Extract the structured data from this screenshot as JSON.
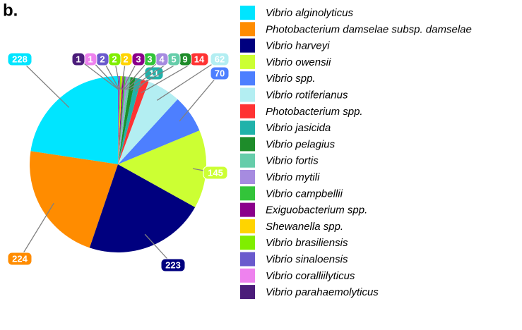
{
  "chart_data": {
    "type": "pie",
    "title": "b.",
    "categories": [
      "Vibrio alginolyticus",
      "Photobacterium damselae subsp. damselae",
      "Vibrio harveyi",
      "Vibrio owensii",
      "Vibrio spp.",
      "Vibrio rotiferianus",
      "Photobacterium spp.",
      "Vibrio jasicida",
      "Vibrio pelagius",
      "Vibrio fortis",
      "Vibrio mytili",
      "Vibrio campbellii",
      "Exiguobacterium spp.",
      "Shewanella spp.",
      "Vibrio brasiliensis",
      "Vibrio sinaloensis",
      "Vibrio coralliilyticus",
      "Vibrio parahaemolyticus"
    ],
    "values": [
      228,
      224,
      223,
      145,
      70,
      62,
      14,
      11,
      9,
      5,
      4,
      3,
      3,
      2,
      2,
      2,
      1,
      1
    ],
    "colors": [
      "#00e5ff",
      "#ff8c00",
      "#00007f",
      "#ccff33",
      "#4d7fff",
      "#b3eef2",
      "#ff3333",
      "#20b2aa",
      "#1e8c2a",
      "#66cdaa",
      "#a68be0",
      "#33c43a",
      "#8b008b",
      "#ffd400",
      "#80ee00",
      "#6a5acd",
      "#ee82ee",
      "#4b1c7a"
    ],
    "legend": "right"
  }
}
